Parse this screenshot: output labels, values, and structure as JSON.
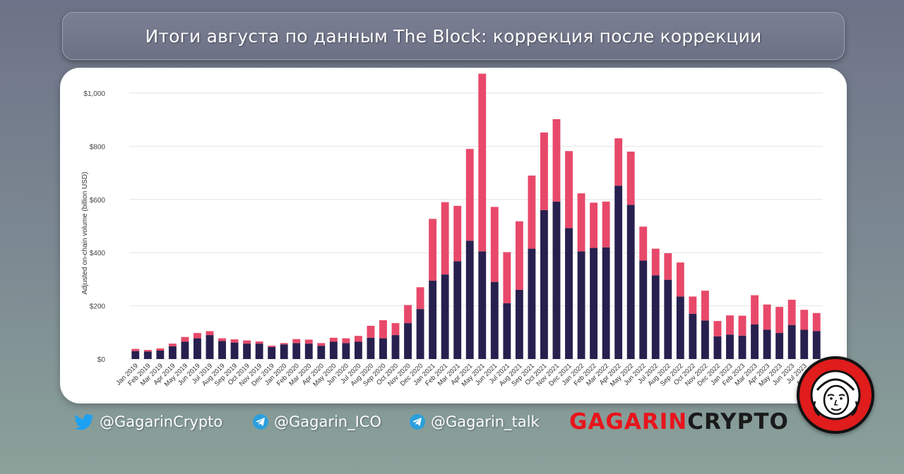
{
  "title": "Итоги августа по данным The Block: коррекция после коррекции",
  "colors": {
    "series_bottom": "#27204f",
    "series_top": "#e8496a",
    "brand_red": "#e8141b",
    "telegram_blue": "#2ba0dc",
    "twitter_blue": "#1da1f2"
  },
  "footer": {
    "twitter_icon": "twitter-bird-icon",
    "twitter": "@GagarinCrypto",
    "telegram_icon": "telegram-plane-icon",
    "telegram_ico": "@Gagarin_ICO",
    "telegram_talk": "@Gagarin_talk",
    "brand_red": "GAGARIN",
    "brand_dark": "CRYPTO",
    "logo_icon": "cosmonaut-helmet-icon"
  },
  "chart_data": {
    "type": "bar",
    "stacked": true,
    "ylabel": "Adjusted on-chain volume (billion USD)",
    "xlabel": "",
    "ylim": [
      0,
      1000
    ],
    "yticks": [
      0,
      200,
      400,
      600,
      800,
      1000
    ],
    "ytick_labels": [
      "$0",
      "$200",
      "$400",
      "$600",
      "$800",
      "$1,000"
    ],
    "grid": true,
    "categories": [
      "Jan 2019",
      "Feb 2019",
      "Mar 2019",
      "Apr 2019",
      "May 2019",
      "Jun 2019",
      "Jul 2019",
      "Aug 2019",
      "Sep 2019",
      "Oct 2019",
      "Nov 2019",
      "Dec 2019",
      "Jan 2020",
      "Feb 2020",
      "Mar 2020",
      "Apr 2020",
      "May 2020",
      "Jun 2020",
      "Jul 2020",
      "Aug 2020",
      "Sep 2020",
      "Oct 2020",
      "Nov 2020",
      "Dec 2020",
      "Jan 2021",
      "Feb 2021",
      "Mar 2021",
      "Apr 2021",
      "May 2021",
      "Jun 2021",
      "Jul 2021",
      "Aug 2021",
      "Sep 2021",
      "Oct 2021",
      "Nov 2021",
      "Dec 2021",
      "Jan 2022",
      "Feb 2022",
      "Mar 2022",
      "Apr 2022",
      "May 2022",
      "Jun 2022",
      "Jul 2022",
      "Aug 2022",
      "Sep 2022",
      "Oct 2022",
      "Nov 2022",
      "Dec 2022",
      "Jan 2023",
      "Feb 2023",
      "Mar 2023",
      "Apr 2023",
      "May 2023",
      "Jun 2023",
      "Jul 2023",
      "Aug 2023"
    ],
    "series": [
      {
        "values": [
          30,
          28,
          32,
          48,
          65,
          78,
          90,
          68,
          62,
          58,
          58,
          45,
          55,
          60,
          58,
          50,
          65,
          60,
          65,
          80,
          78,
          90,
          135,
          188,
          295,
          318,
          368,
          445,
          405,
          290,
          210,
          260,
          415,
          560,
          592,
          492,
          405,
          418,
          420,
          652,
          580,
          370,
          315,
          298,
          235,
          170,
          145,
          85,
          92,
          88,
          130,
          110,
          98,
          128,
          110,
          105
        ]
      },
      {
        "values": [
          8,
          6,
          8,
          10,
          18,
          20,
          15,
          10,
          12,
          12,
          8,
          5,
          5,
          15,
          15,
          10,
          15,
          18,
          22,
          45,
          68,
          45,
          68,
          82,
          232,
          272,
          208,
          345,
          668,
          282,
          192,
          258,
          275,
          292,
          310,
          290,
          218,
          170,
          172,
          178,
          200,
          128,
          100,
          100,
          128,
          65,
          112,
          58,
          72,
          75,
          110,
          95,
          98,
          95,
          75,
          68
        ]
      }
    ]
  }
}
